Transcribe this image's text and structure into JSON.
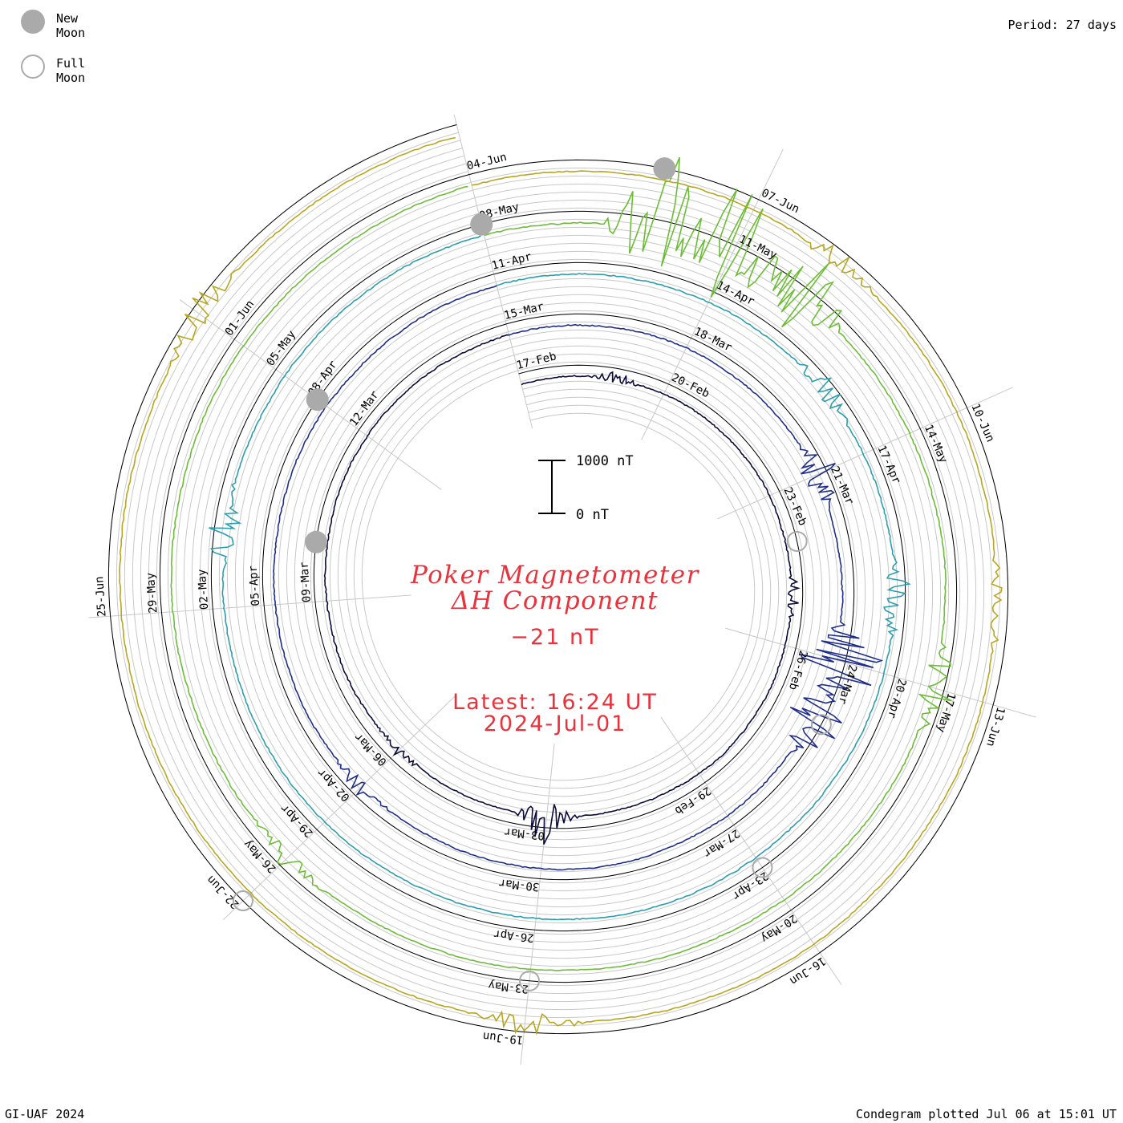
{
  "legend": {
    "new_moon_label": "New Moon",
    "full_moon_label": "Full Moon",
    "new_moon_color": "#aaaaaa",
    "full_moon_color": "#aaaaaa"
  },
  "header": {
    "period": "Period: 27 days"
  },
  "footer": {
    "credit": "GI-UAF 2024",
    "plotted": "Condegram plotted Jul 06 at 15:01 UT"
  },
  "title": {
    "line1": "Poker Magnetometer",
    "line2": "ΔH Component",
    "value": "−21 nT",
    "latest": "Latest: 16:24 UT",
    "date": "2024-Jul-01",
    "color": "#e8323c"
  },
  "scale_bar": {
    "top_label": "1000 nT",
    "bottom_label": "0 nT"
  },
  "chart_data": {
    "type": "line",
    "layout": "spiral",
    "period_days": 27,
    "start_date": "2024-02-17",
    "end_date": "2024-07-01",
    "series": [
      {
        "color": "#0c0a3a",
        "labels": [
          "17-Feb",
          "20-Feb",
          "23-Feb",
          "26-Feb",
          "29-Feb",
          "03-Mar",
          "06-Mar",
          "09-Mar",
          "12-Mar"
        ],
        "disturbances": [
          {
            "date": "2024-02-19",
            "value": 180
          },
          {
            "date": "2024-02-25",
            "value": 200
          },
          {
            "date": "2024-03-03",
            "value": 600
          },
          {
            "date": "2024-03-06",
            "value": 150
          }
        ]
      },
      {
        "color": "#1d2d8c",
        "labels": [
          "15-Mar",
          "18-Mar",
          "21-Mar",
          "24-Mar",
          "27-Mar",
          "30-Mar",
          "02-Apr",
          "05-Apr",
          "08-Apr"
        ],
        "disturbances": [
          {
            "date": "2024-03-21",
            "value": 500
          },
          {
            "date": "2024-03-24",
            "value": 1300
          },
          {
            "date": "2024-03-25",
            "value": 900
          },
          {
            "date": "2024-04-02",
            "value": 200
          }
        ]
      },
      {
        "color": "#2b9eae",
        "labels": [
          "11-Apr",
          "14-Apr",
          "17-Apr",
          "20-Apr",
          "23-Apr",
          "26-Apr",
          "29-Apr",
          "02-May",
          "05-May"
        ],
        "disturbances": [
          {
            "date": "2024-04-16",
            "value": 300
          },
          {
            "date": "2024-04-19",
            "value": 450
          },
          {
            "date": "2024-05-03",
            "value": 500
          },
          {
            "date": "2024-04-05",
            "value": 300
          }
        ]
      },
      {
        "color": "#6cbd36",
        "labels": [
          "08-May",
          "11-May",
          "14-May",
          "17-May",
          "20-May",
          "23-May",
          "26-May",
          "29-May",
          "01-Jun"
        ],
        "disturbances": [
          {
            "date": "2024-05-10",
            "value": 2000
          },
          {
            "date": "2024-05-11",
            "value": 2200
          },
          {
            "date": "2024-05-12",
            "value": 1200
          },
          {
            "date": "2024-05-17",
            "value": 500
          },
          {
            "date": "2024-05-26",
            "value": 300
          }
        ]
      },
      {
        "color": "#b8a61f",
        "labels": [
          "04-Jun",
          "07-Jun",
          "10-Jun",
          "13-Jun",
          "16-Jun",
          "19-Jun",
          "22-Jun",
          "25-Jun"
        ],
        "disturbances": [
          {
            "date": "2024-06-08",
            "value": 300
          },
          {
            "date": "2024-06-12",
            "value": 250
          },
          {
            "date": "2024-06-19",
            "value": 350
          },
          {
            "date": "2024-06-28",
            "value": 400
          }
        ]
      }
    ],
    "moons": [
      {
        "type": "new",
        "date": "2024-03-10"
      },
      {
        "type": "full",
        "date": "2024-02-24"
      },
      {
        "type": "full",
        "date": "2024-03-25"
      },
      {
        "type": "new",
        "date": "2024-04-08"
      },
      {
        "type": "full",
        "date": "2024-04-23"
      },
      {
        "type": "new",
        "date": "2024-05-08"
      },
      {
        "type": "full",
        "date": "2024-05-23"
      },
      {
        "type": "new",
        "date": "2024-06-06"
      },
      {
        "type": "full",
        "date": "2024-06-22"
      }
    ],
    "ylim": [
      0,
      1000
    ],
    "units": "nT",
    "grid": true
  }
}
